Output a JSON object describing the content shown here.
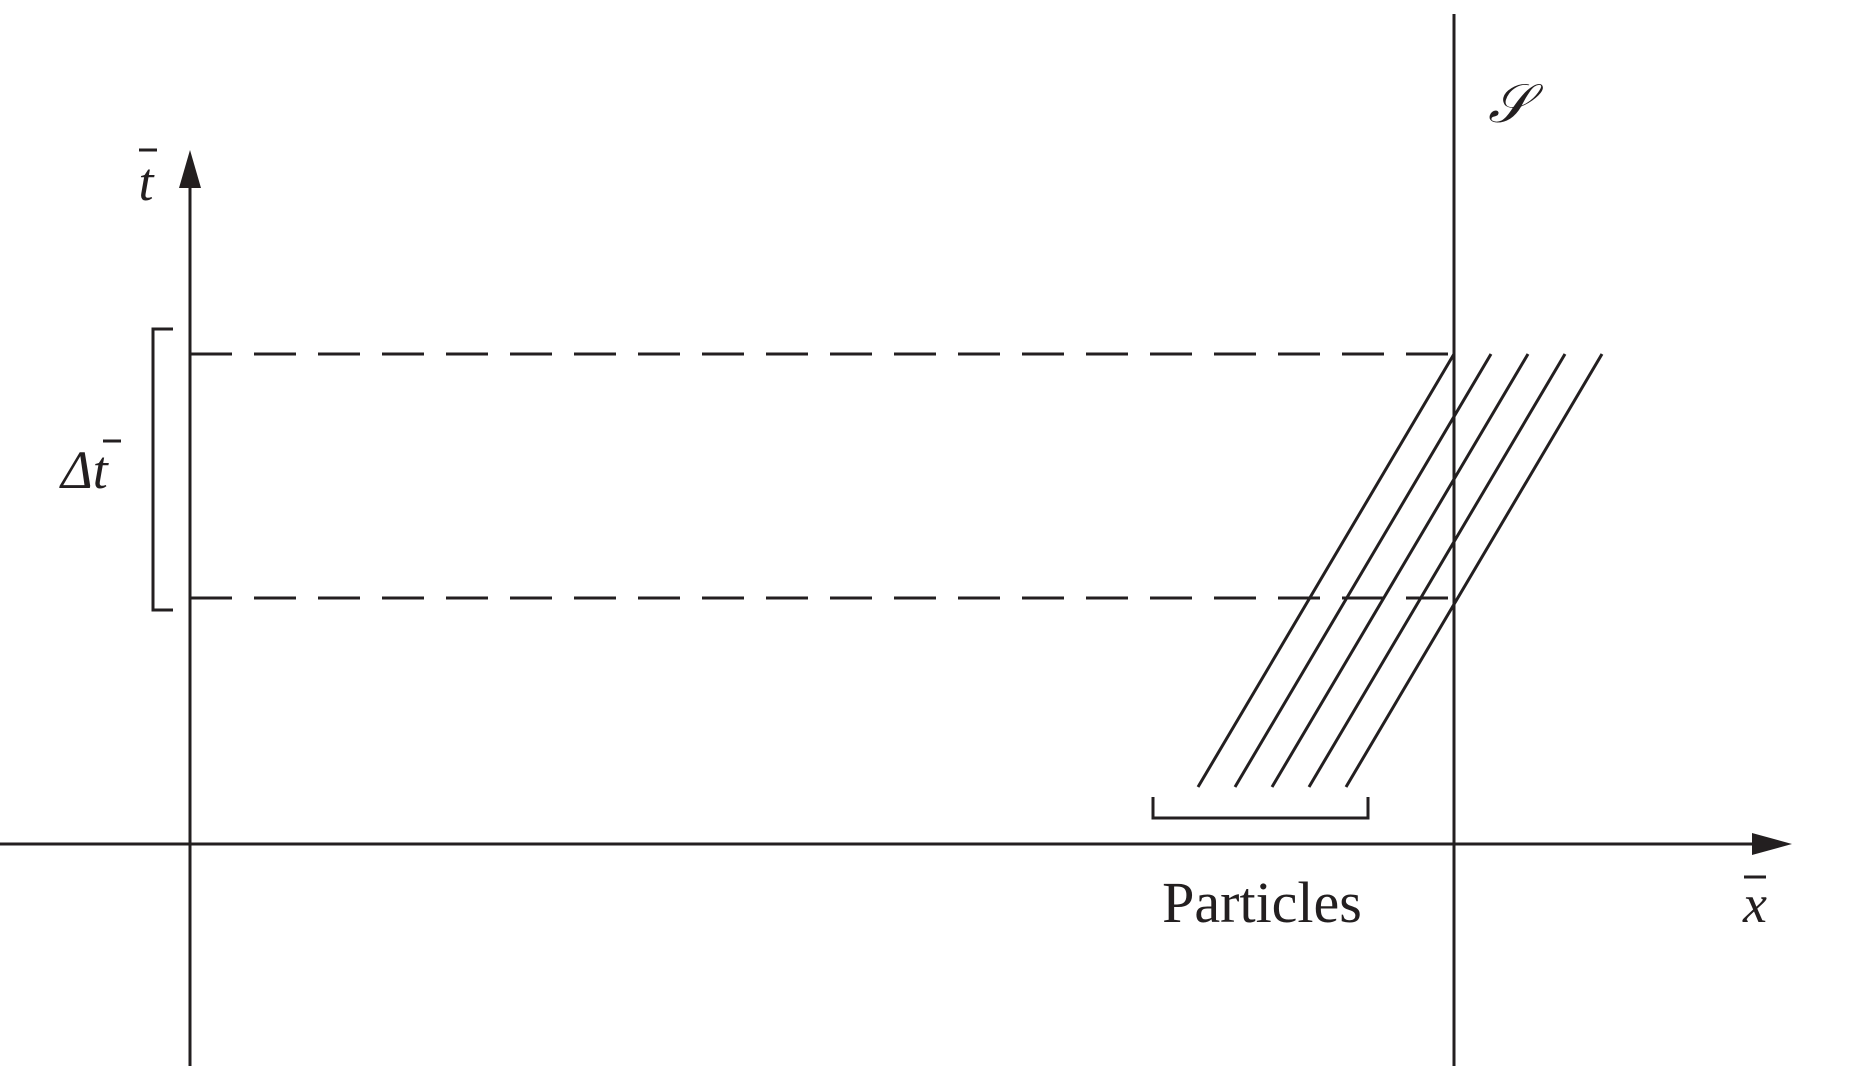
{
  "labels": {
    "t_axis": "t",
    "x_axis": "x",
    "delta_t": "Δt",
    "surface": "𝒮",
    "particles": "Particles"
  },
  "colors": {
    "ink": "#231f20",
    "background": "#ffffff"
  }
}
